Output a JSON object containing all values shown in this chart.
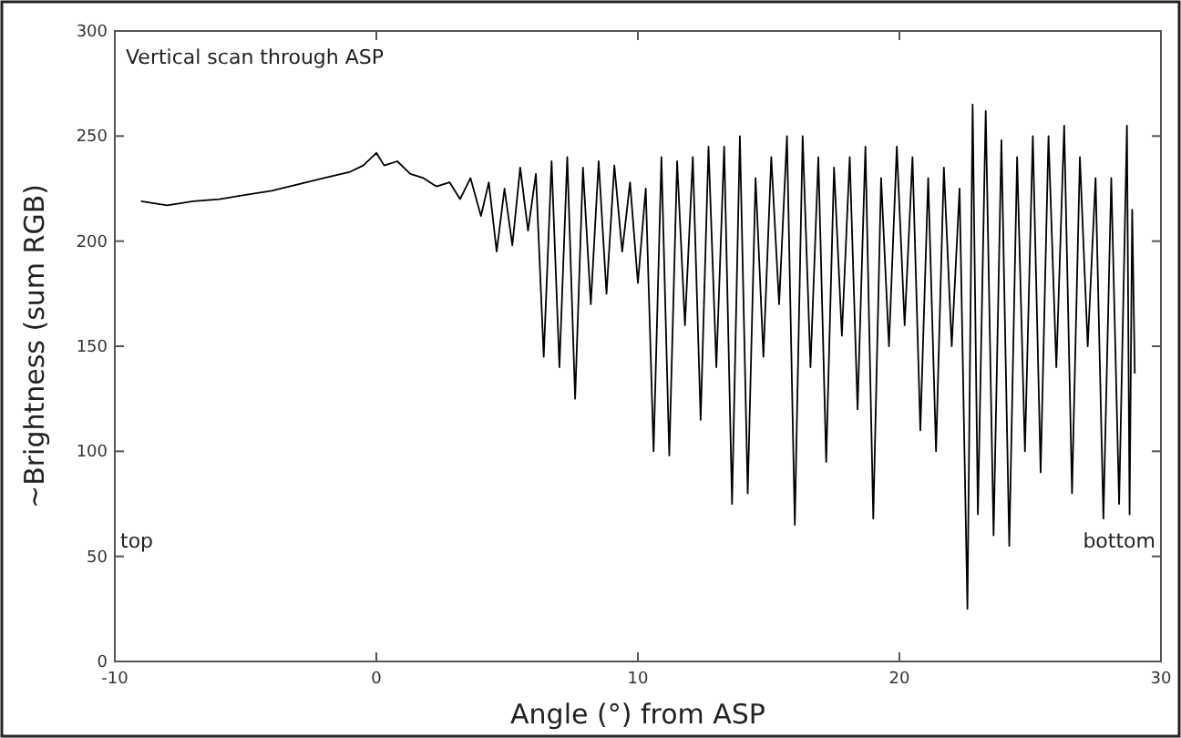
{
  "chart_data": {
    "type": "line",
    "title": "Vertical scan through ASP",
    "xlabel": "Angle (°) from ASP",
    "ylabel": "~Brightness (sum RGB)",
    "xlim": [
      -10,
      30
    ],
    "ylim": [
      0,
      300
    ],
    "xticks": [
      -10,
      0,
      10,
      20,
      30
    ],
    "yticks": [
      0,
      50,
      100,
      150,
      200,
      250,
      300
    ],
    "grid": false,
    "marker": "none",
    "line_style": "solid",
    "annotations": [
      "top",
      "bottom"
    ],
    "series": [
      {
        "color": "#000000",
        "x": [
          -9,
          -8,
          -7,
          -6,
          -5,
          -4,
          -3,
          -2,
          -1,
          -0.5,
          0,
          0.3,
          0.8,
          1.3,
          1.8,
          2.3,
          2.8,
          3.2,
          3.6,
          4.0,
          4.3,
          4.6,
          4.9,
          5.2,
          5.5,
          5.8,
          6.1,
          6.4,
          6.7,
          7.0,
          7.3,
          7.6,
          7.9,
          8.2,
          8.5,
          8.8,
          9.1,
          9.4,
          9.7,
          10.0,
          10.3,
          10.6,
          10.9,
          11.2,
          11.5,
          11.8,
          12.1,
          12.4,
          12.7,
          13.0,
          13.3,
          13.6,
          13.9,
          14.2,
          14.5,
          14.8,
          15.1,
          15.4,
          15.7,
          16.0,
          16.3,
          16.6,
          16.9,
          17.2,
          17.5,
          17.8,
          18.1,
          18.4,
          18.7,
          19.0,
          19.3,
          19.6,
          19.9,
          20.2,
          20.5,
          20.8,
          21.1,
          21.4,
          21.7,
          22.0,
          22.3,
          22.6,
          22.8,
          23.0,
          23.3,
          23.6,
          23.9,
          24.2,
          24.5,
          24.8,
          25.1,
          25.4,
          25.7,
          26.0,
          26.3,
          26.6,
          26.9,
          27.2,
          27.5,
          27.8,
          28.1,
          28.4,
          28.7,
          28.8,
          28.9,
          29.0
        ],
        "values": [
          219,
          217,
          219,
          220,
          222,
          224,
          227,
          230,
          233,
          236,
          242,
          236,
          238,
          232,
          230,
          226,
          228,
          220,
          230,
          212,
          228,
          195,
          225,
          198,
          235,
          205,
          232,
          145,
          238,
          140,
          240,
          125,
          235,
          170,
          238,
          175,
          236,
          195,
          228,
          180,
          225,
          100,
          240,
          98,
          238,
          160,
          240,
          115,
          245,
          140,
          245,
          75,
          250,
          80,
          230,
          145,
          240,
          170,
          250,
          65,
          250,
          140,
          240,
          95,
          235,
          155,
          240,
          120,
          245,
          68,
          230,
          150,
          245,
          160,
          240,
          110,
          230,
          100,
          235,
          150,
          225,
          25,
          265,
          70,
          262,
          60,
          248,
          55,
          240,
          100,
          250,
          90,
          250,
          140,
          255,
          80,
          240,
          150,
          230,
          68,
          230,
          75,
          255,
          70,
          215,
          137
        ]
      }
    ]
  }
}
